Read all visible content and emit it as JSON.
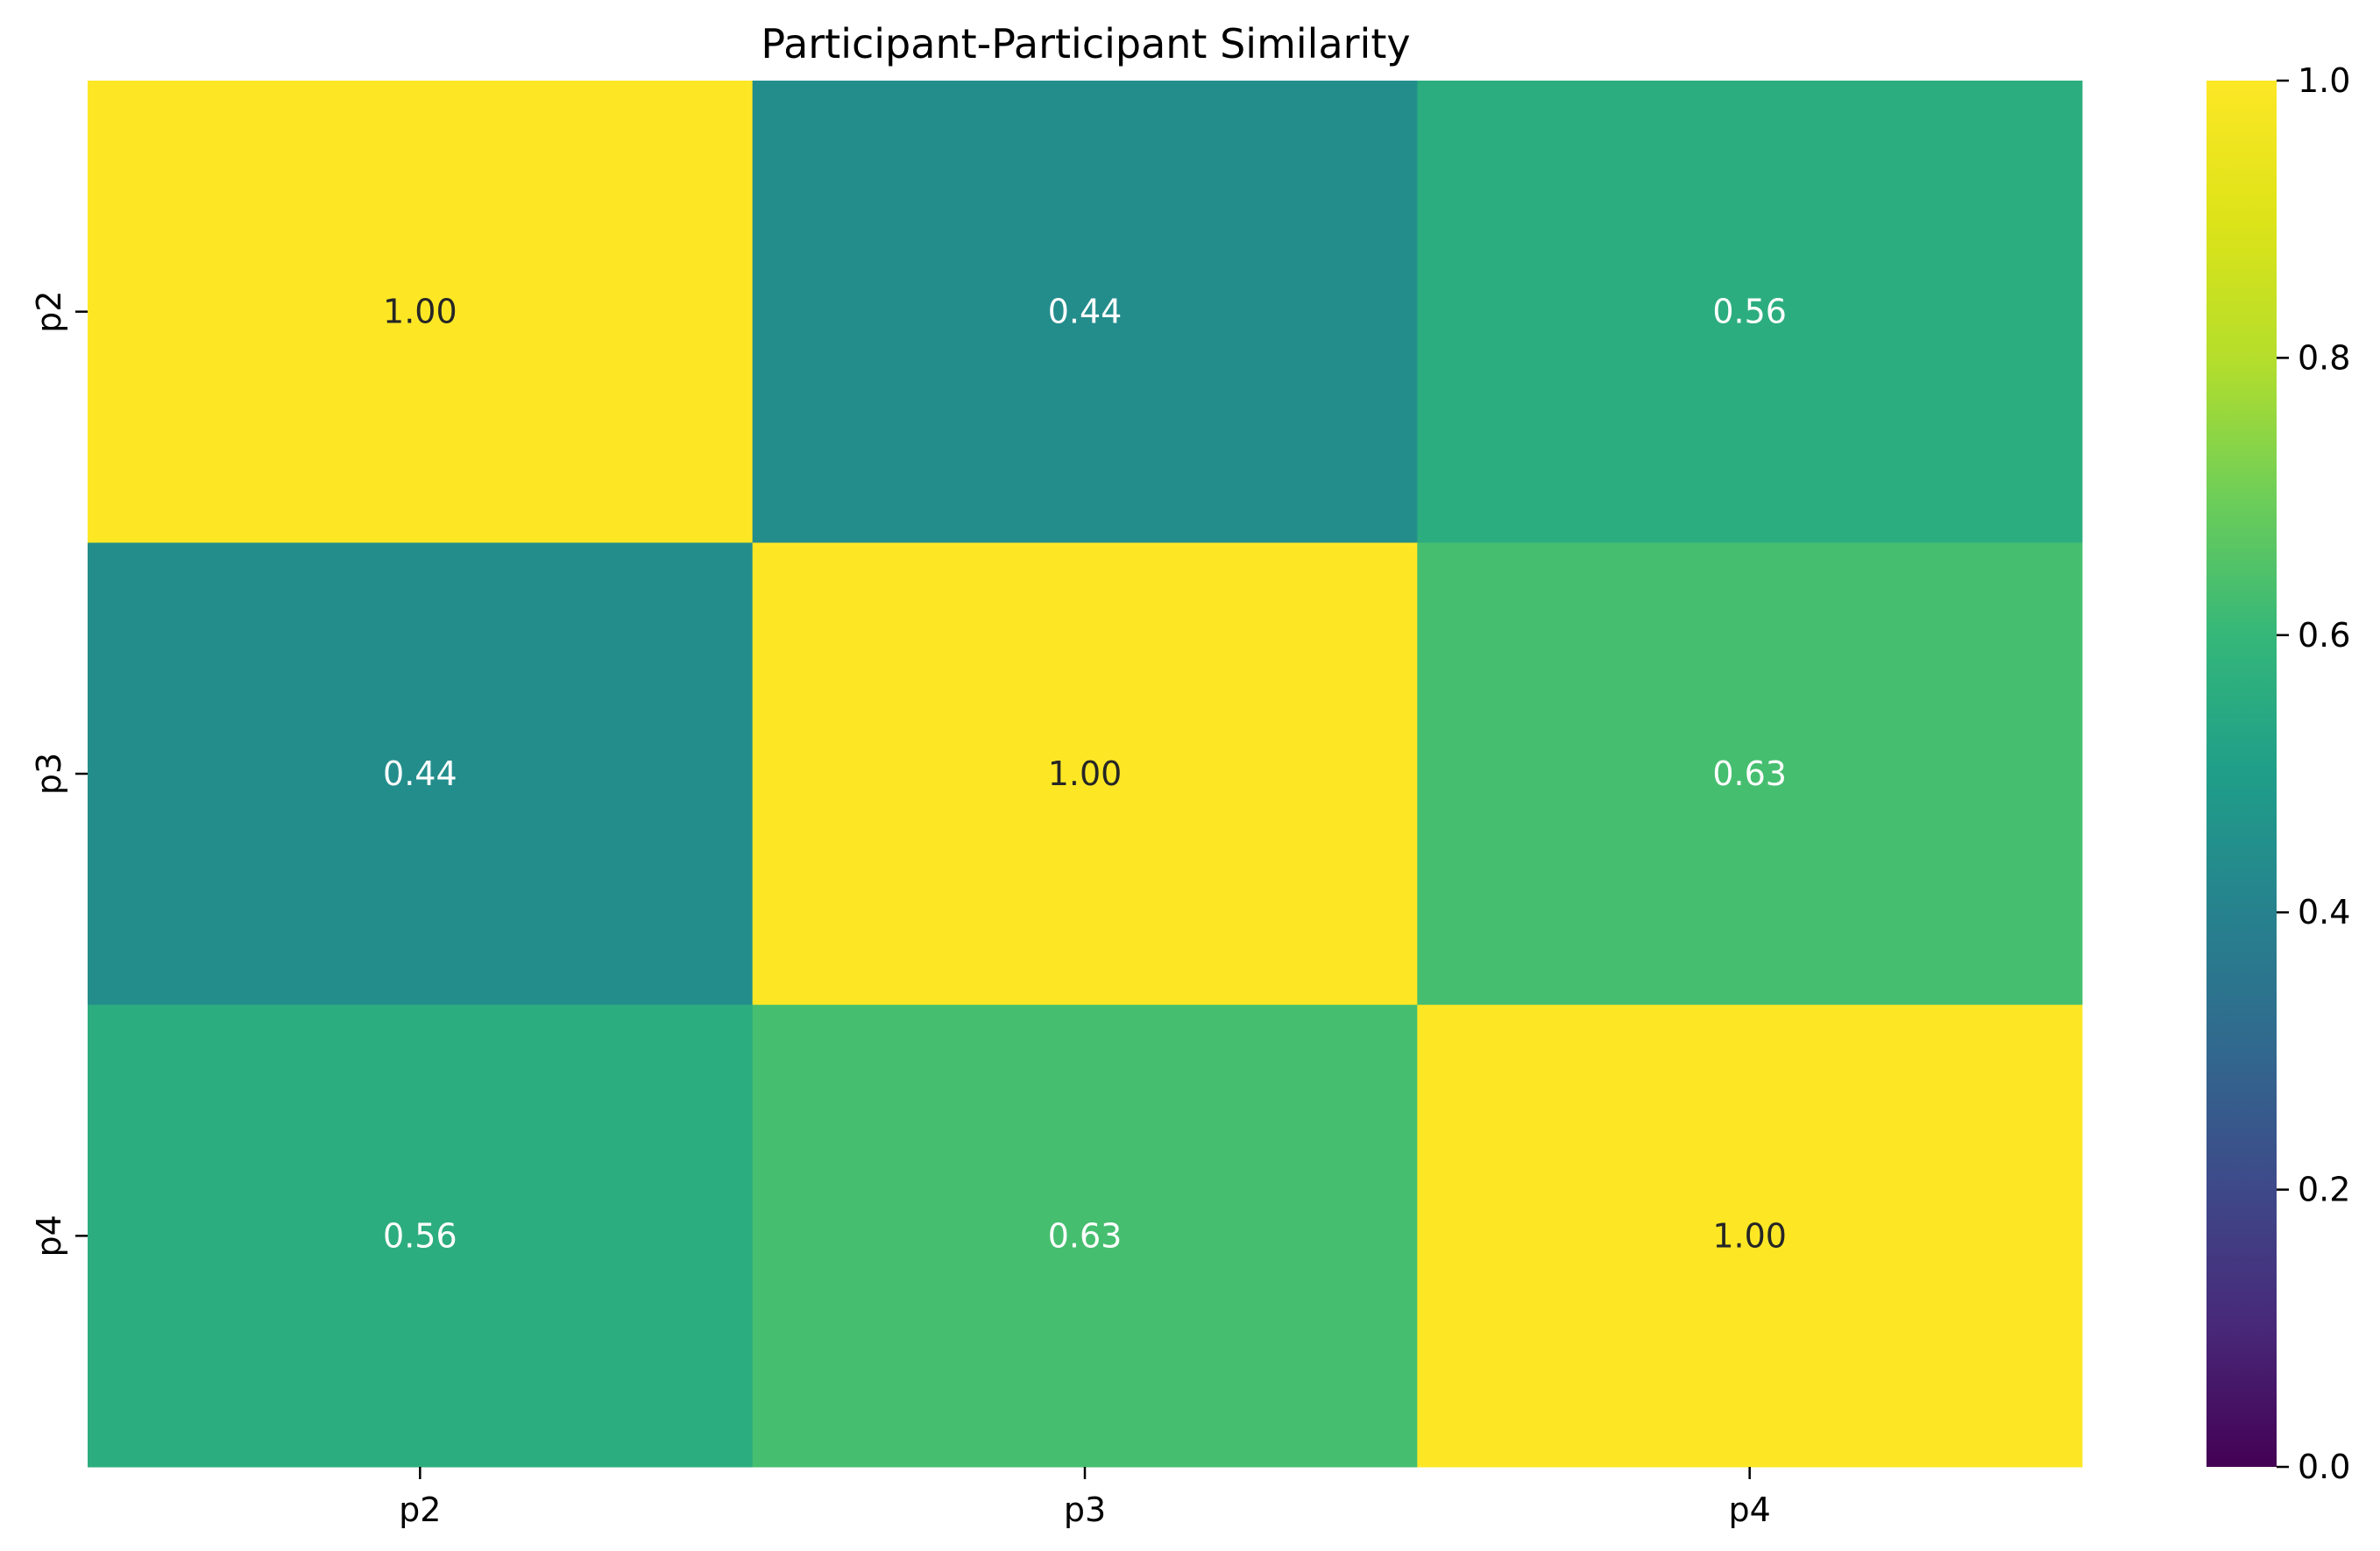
{
  "chart_data": {
    "type": "heatmap",
    "title": "Participant-Participant Similarity",
    "xlabel": "",
    "ylabel": "",
    "x_categories": [
      "p2",
      "p3",
      "p4"
    ],
    "y_categories": [
      "p2",
      "p3",
      "p4"
    ],
    "values": [
      [
        1.0,
        0.44,
        0.56
      ],
      [
        0.44,
        1.0,
        0.63
      ],
      [
        0.56,
        0.63,
        1.0
      ]
    ],
    "annotations": [
      [
        "1.00",
        "0.44",
        "0.56"
      ],
      [
        "0.44",
        "1.00",
        "0.63"
      ],
      [
        "0.56",
        "0.63",
        "1.00"
      ]
    ],
    "colormap": "viridis",
    "colorbar": {
      "range": [
        0.0,
        1.0
      ],
      "ticks": [
        0.0,
        0.2,
        0.4,
        0.6,
        0.8,
        1.0
      ],
      "tick_labels": [
        "0.0",
        "0.2",
        "0.4",
        "0.6",
        "0.8",
        "1.0"
      ]
    },
    "grid": false
  }
}
